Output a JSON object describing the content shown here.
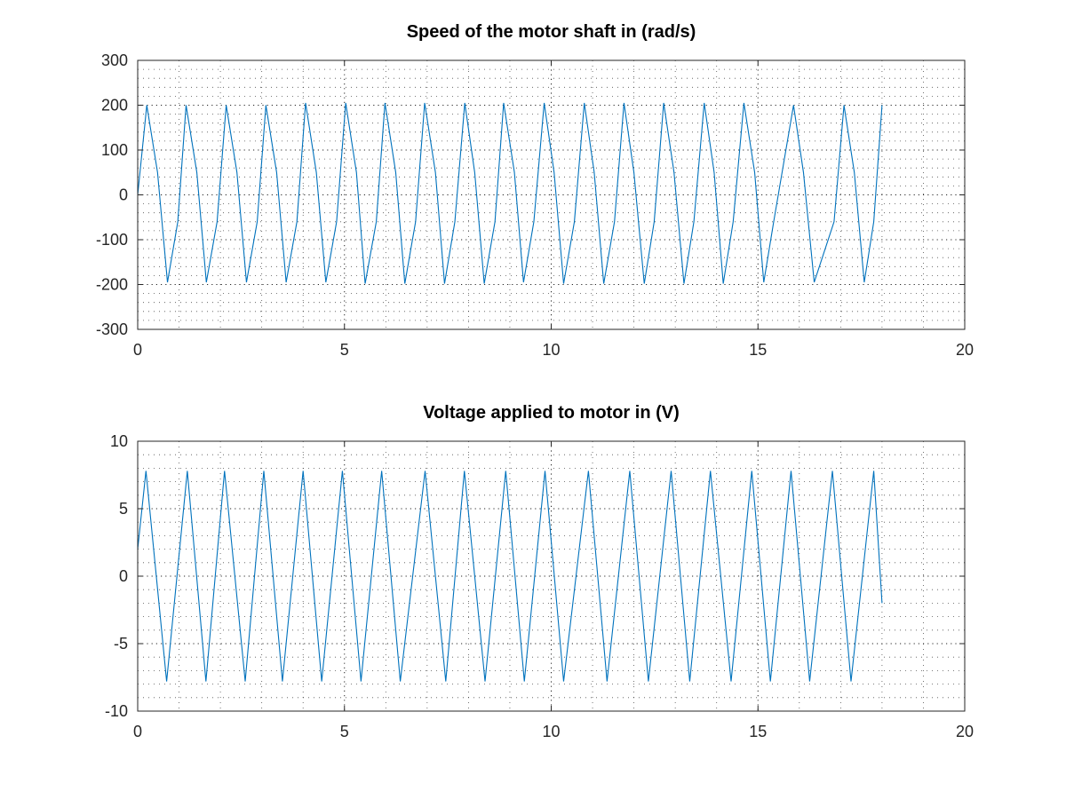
{
  "chart_data": [
    {
      "type": "line",
      "title": "Speed of the motor shaft in (rad/s)",
      "xlabel": "",
      "ylabel": "",
      "xlim": [
        0,
        20
      ],
      "ylim": [
        -300,
        300
      ],
      "xticks": [
        0,
        5,
        10,
        15,
        20
      ],
      "yticks": [
        -300,
        -200,
        -100,
        0,
        100,
        200,
        300
      ],
      "grid": true,
      "color": "#0072bd",
      "series": [
        {
          "x": [
            0,
            0.22,
            0.48,
            0.72,
            0.97,
            1.17,
            1.43,
            1.66,
            1.92,
            2.14,
            2.4,
            2.63,
            2.89,
            3.1,
            3.36,
            3.59,
            3.85,
            4.06,
            4.32,
            4.55,
            4.81,
            5.03,
            5.29,
            5.5,
            5.77,
            5.98,
            6.24,
            6.46,
            6.72,
            6.94,
            7.2,
            7.42,
            7.67,
            7.91,
            8.15,
            8.38,
            8.64,
            8.85,
            9.11,
            9.33,
            9.58,
            9.83,
            10.07,
            10.3,
            10.56,
            10.8,
            11.04,
            11.27,
            11.53,
            11.76,
            12.0,
            12.25,
            12.49,
            12.72,
            12.97,
            13.21,
            13.45,
            13.7,
            13.94,
            14.16,
            14.4,
            14.66,
            14.92,
            15.14,
            15.38,
            15.86,
            16.1,
            16.36,
            16.84,
            17.08,
            17.33,
            17.57,
            17.8,
            18.0
          ],
          "y": [
            0,
            200,
            50,
            -195,
            -60,
            200,
            50,
            -195,
            -60,
            200,
            50,
            -195,
            -60,
            200,
            50,
            -195,
            -60,
            205,
            50,
            -195,
            -60,
            205,
            50,
            -198,
            -60,
            205,
            50,
            -198,
            -60,
            205,
            50,
            -198,
            -60,
            205,
            50,
            -198,
            -60,
            205,
            50,
            -195,
            -60,
            205,
            50,
            -198,
            -60,
            205,
            50,
            -198,
            -60,
            205,
            50,
            -198,
            -60,
            205,
            50,
            -198,
            -60,
            205,
            50,
            -198,
            -60,
            205,
            50,
            -195,
            -60,
            200,
            50,
            -195,
            -60,
            200,
            50,
            -195,
            -60,
            200
          ]
        }
      ]
    },
    {
      "type": "line",
      "title": "Voltage applied to motor in (V)",
      "xlabel": "",
      "ylabel": "",
      "xlim": [
        0,
        20
      ],
      "ylim": [
        -10,
        10
      ],
      "xticks": [
        0,
        5,
        10,
        15,
        20
      ],
      "yticks": [
        -10,
        -5,
        0,
        5,
        10
      ],
      "grid": true,
      "color": "#0072bd",
      "series": [
        {
          "x": [
            0,
            0.2,
            0.7,
            1.2,
            1.65,
            2.1,
            2.6,
            3.05,
            3.5,
            4.0,
            4.45,
            4.95,
            5.4,
            5.9,
            6.35,
            6.95,
            7.45,
            7.9,
            8.4,
            8.9,
            9.35,
            9.85,
            10.3,
            10.9,
            11.35,
            11.9,
            12.35,
            12.9,
            13.35,
            13.85,
            14.35,
            14.85,
            15.3,
            15.8,
            16.25,
            16.8,
            17.25,
            17.8,
            18.0
          ],
          "y": [
            2,
            7.8,
            -7.8,
            7.8,
            -7.8,
            7.8,
            -7.8,
            7.8,
            -7.8,
            7.8,
            -7.8,
            7.8,
            -7.8,
            7.8,
            -7.8,
            7.8,
            -7.8,
            7.8,
            -7.8,
            7.8,
            -7.8,
            7.8,
            -7.8,
            7.8,
            -7.8,
            7.8,
            -7.8,
            7.8,
            -7.8,
            7.8,
            -7.8,
            7.8,
            -7.8,
            7.8,
            -7.8,
            7.8,
            -7.8,
            7.8,
            -2
          ]
        }
      ]
    }
  ]
}
